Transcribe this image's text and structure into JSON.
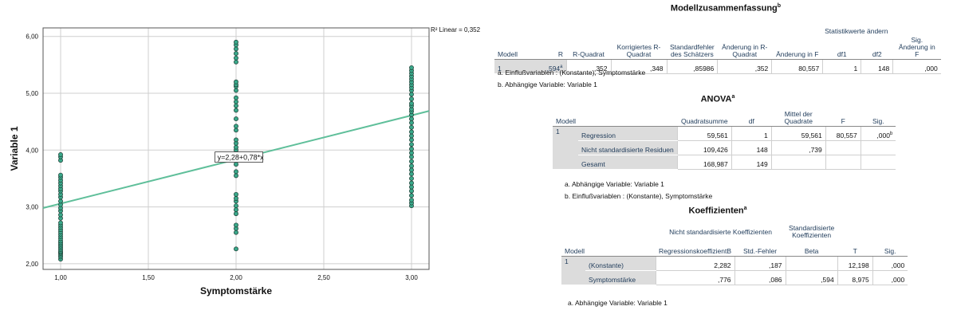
{
  "chart_data": {
    "type": "scatter",
    "xlabel": "Symptomstärke",
    "ylabel": "Variable 1",
    "xlim": [
      0.9,
      3.1
    ],
    "ylim": [
      1.9,
      6.15
    ],
    "x_ticks": [
      "1,00",
      "1,50",
      "2,00",
      "2,50",
      "3,00"
    ],
    "x_tick_values": [
      1.0,
      1.5,
      2.0,
      2.5,
      3.0
    ],
    "y_ticks": [
      "2,00",
      "3,00",
      "4,00",
      "5,00",
      "6,00"
    ],
    "y_tick_values": [
      2.0,
      3.0,
      4.0,
      5.0,
      6.0
    ],
    "grid": true,
    "r2_label": "R² Linear = 0,352",
    "equation_label": "y=2,28+0,78*x",
    "fit_line": {
      "intercept": 2.282,
      "slope": 0.776
    },
    "marker_color": "#3aa88a",
    "line_color": "#5fbf9a",
    "points": {
      "x1": [
        2.08,
        2.12,
        2.15,
        2.18,
        2.2,
        2.22,
        2.25,
        2.28,
        2.31,
        2.34,
        2.37,
        2.4,
        2.44,
        2.48,
        2.52,
        2.56,
        2.6,
        2.64,
        2.68,
        2.72,
        2.8,
        2.86,
        2.93,
        2.98,
        3.04,
        3.1,
        3.17,
        3.22,
        3.28,
        3.32,
        3.37,
        3.42,
        3.47,
        3.52,
        3.56,
        3.82,
        3.88,
        3.92
      ],
      "x2": [
        2.26,
        2.55,
        2.62,
        2.68,
        2.88,
        2.95,
        3.02,
        3.1,
        3.15,
        3.22,
        3.55,
        3.62,
        3.75,
        3.82,
        3.9,
        4.0,
        4.05,
        4.12,
        4.18,
        4.35,
        4.42,
        4.55,
        4.7,
        4.78,
        4.85,
        4.92,
        5.05,
        5.12,
        5.15,
        5.2,
        5.55,
        5.62,
        5.7,
        5.78,
        5.85,
        5.9
      ],
      "x3": [
        3.02,
        3.07,
        3.12,
        3.2,
        3.28,
        3.35,
        3.42,
        3.5,
        3.58,
        3.65,
        3.72,
        3.8,
        3.88,
        3.95,
        4.02,
        4.1,
        4.18,
        4.25,
        4.32,
        4.4,
        4.48,
        4.55,
        4.62,
        4.68,
        4.72,
        4.78,
        4.82,
        4.9,
        4.98,
        5.05,
        5.1,
        5.15,
        5.2,
        5.25,
        5.3,
        5.35,
        5.4,
        5.45
      ]
    }
  },
  "model_summary": {
    "title": "Modellzusammenfassung",
    "title_sup": "b",
    "group_header": "Statistikwerte ändern",
    "headers": [
      "Modell",
      "R",
      "R-Quadrat",
      "Korrigiertes R-Quadrat",
      "Standardfehler des Schätzers",
      "Änderung in R-Quadrat",
      "Änderung in F",
      "df1",
      "df2",
      "Sig. Änderung in F"
    ],
    "row": {
      "modell": "1",
      "r": ",594",
      "r_sup": "a",
      "r2": ",352",
      "r2_adj": ",348",
      "se": ",85986",
      "dr2": ",352",
      "df_change": "80,557",
      "df1": "1",
      "df2": "148",
      "sig": ",000"
    },
    "note_a": "a. Einflußvariablen : (Konstante), Symptomstärke",
    "note_b": "b. Abhängige Variable: Variable  1"
  },
  "anova": {
    "title": "ANOVA",
    "title_sup": "a",
    "headers": [
      "Modell",
      "Quadratsumme",
      "df",
      "Mittel der Quadrate",
      "F",
      "Sig."
    ],
    "modell": "1",
    "rows": [
      {
        "label": "Regression",
        "ss": "59,561",
        "df": "1",
        "ms": "59,561",
        "f": "80,557",
        "sig": ",000",
        "sig_sup": "b"
      },
      {
        "label": "Nicht standardisierte Residuen",
        "ss": "109,426",
        "df": "148",
        "ms": ",739",
        "f": "",
        "sig": "",
        "sig_sup": ""
      },
      {
        "label": "Gesamt",
        "ss": "168,987",
        "df": "149",
        "ms": "",
        "f": "",
        "sig": "",
        "sig_sup": ""
      }
    ],
    "note_a": "a. Abhängige Variable: Variable  1",
    "note_b": "b. Einflußvariablen : (Konstante), Symptomstärke"
  },
  "coefficients": {
    "title": "Koeffizienten",
    "title_sup": "a",
    "group1": "Nicht standardisierte Koeffizienten",
    "group2": "Standardisierte Koeffizienten",
    "headers": [
      "Modell",
      "RegressionskoeffizientB",
      "Std.-Fehler",
      "Beta",
      "T",
      "Sig."
    ],
    "modell": "1",
    "rows": [
      {
        "label": "(Konstante)",
        "b": "2,282",
        "se": ",187",
        "beta": "",
        "t": "12,198",
        "sig": ",000"
      },
      {
        "label": "Symptomstärke",
        "b": ",776",
        "se": ",086",
        "beta": ",594",
        "t": "8,975",
        "sig": ",000"
      }
    ],
    "note_a": "a. Abhängige Variable: Variable  1"
  }
}
